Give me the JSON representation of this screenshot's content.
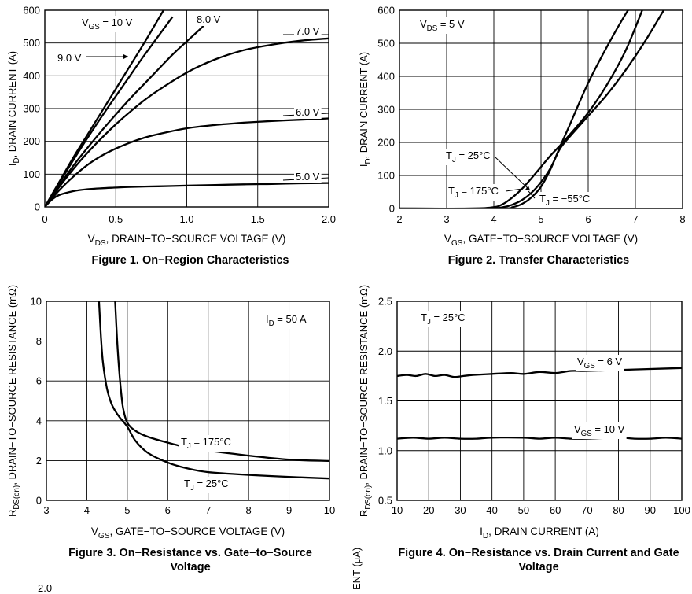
{
  "chart_data": [
    {
      "type": "line",
      "title": "Figure 1. On−Region Characteristics",
      "xlabel": "V",
      "xlabel_sub": "DS",
      "xlabel_rest": ", DRAIN−TO−SOURCE VOLTAGE (V)",
      "ylabel": "I",
      "ylabel_sub": "D",
      "ylabel_rest": ", DRAIN CURRENT (A)",
      "xlim": [
        0,
        2.0
      ],
      "ylim": [
        0,
        600
      ],
      "xticks": [
        0,
        0.5,
        1.0,
        1.5,
        2.0
      ],
      "xtick_labels": [
        "0",
        "0.5",
        "1.0",
        "1.5",
        "2.0"
      ],
      "yticks": [
        0,
        100,
        200,
        300,
        400,
        500,
        600
      ],
      "ytick_labels": [
        "0",
        "100",
        "200",
        "300",
        "400",
        "500",
        "600"
      ],
      "grid": true,
      "series": [
        {
          "name": "10 V",
          "x": [
            0,
            0.1,
            0.2,
            0.3,
            0.4,
            0.5,
            0.6,
            0.7,
            0.85
          ],
          "y": [
            0,
            75,
            150,
            220,
            290,
            360,
            430,
            500,
            610
          ]
        },
        {
          "name": "9.0 V",
          "x": [
            0,
            0.1,
            0.2,
            0.3,
            0.4,
            0.5,
            0.6,
            0.7,
            0.9
          ],
          "y": [
            0,
            72,
            142,
            210,
            275,
            338,
            400,
            462,
            580
          ]
        },
        {
          "name": "8.0 V",
          "x": [
            0,
            0.1,
            0.2,
            0.3,
            0.4,
            0.5,
            0.6,
            0.7,
            0.8,
            0.9,
            1.0,
            1.1,
            1.2
          ],
          "y": [
            0,
            64,
            125,
            180,
            232,
            282,
            330,
            375,
            420,
            465,
            505,
            545,
            590
          ]
        },
        {
          "name": "7.0 V",
          "x": [
            0,
            0.1,
            0.2,
            0.3,
            0.4,
            0.5,
            0.6,
            0.7,
            0.8,
            1.0,
            1.2,
            1.4,
            1.6,
            1.8,
            2.0
          ],
          "y": [
            0,
            60,
            115,
            165,
            210,
            252,
            290,
            325,
            356,
            410,
            450,
            478,
            495,
            507,
            514
          ]
        },
        {
          "name": "6.0 V",
          "x": [
            0,
            0.1,
            0.2,
            0.3,
            0.4,
            0.5,
            0.6,
            0.7,
            0.8,
            1.0,
            1.2,
            1.4,
            1.6,
            1.8,
            2.0
          ],
          "y": [
            0,
            50,
            92,
            128,
            156,
            178,
            196,
            211,
            222,
            240,
            250,
            257,
            262,
            266,
            270
          ]
        },
        {
          "name": "5.0 V",
          "x": [
            0,
            0.05,
            0.1,
            0.2,
            0.3,
            0.4,
            0.5,
            0.6,
            0.8,
            1.0,
            1.2,
            1.4,
            1.6,
            1.8,
            2.0
          ],
          "y": [
            0,
            22,
            36,
            48,
            54,
            57,
            59,
            61,
            63,
            65,
            67,
            69,
            70,
            72,
            73
          ]
        }
      ],
      "annotations": [
        {
          "text": "V",
          "sub": "GS",
          "rest": " = 10 V"
        },
        {
          "text": "9.0 V"
        },
        {
          "text": "8.0 V"
        },
        {
          "text": "7.0 V"
        },
        {
          "text": "6.0 V"
        },
        {
          "text": "5.0 V"
        }
      ]
    },
    {
      "type": "line",
      "title": "Figure 2. Transfer Characteristics",
      "xlabel": "V",
      "xlabel_sub": "GS",
      "xlabel_rest": ", GATE−TO−SOURCE VOLTAGE (V)",
      "ylabel": "I",
      "ylabel_sub": "D",
      "ylabel_rest": ", DRAIN CURRENT (A)",
      "xlim": [
        2,
        8
      ],
      "ylim": [
        0,
        600
      ],
      "xticks": [
        2,
        3,
        4,
        5,
        6,
        7,
        8
      ],
      "xtick_labels": [
        "2",
        "3",
        "4",
        "5",
        "6",
        "7",
        "8"
      ],
      "yticks": [
        0,
        100,
        200,
        300,
        400,
        500,
        600
      ],
      "ytick_labels": [
        "0",
        "100",
        "200",
        "300",
        "400",
        "500",
        "600"
      ],
      "grid": true,
      "series": [
        {
          "name": "T_J = 25°C",
          "x": [
            2,
            3.5,
            4.0,
            4.2,
            4.4,
            4.6,
            4.8,
            5.0,
            5.2,
            5.4,
            5.6,
            6.0,
            6.4,
            6.8,
            7.2
          ],
          "y": [
            0,
            0,
            4,
            14,
            34,
            60,
            92,
            126,
            160,
            190,
            222,
            290,
            375,
            480,
            620
          ]
        },
        {
          "name": "T_J = 175°C",
          "x": [
            2,
            3.8,
            4.2,
            4.4,
            4.6,
            4.8,
            5.0,
            5.2,
            5.4,
            5.6,
            6.0,
            6.4,
            6.8,
            7.2,
            7.6
          ],
          "y": [
            0,
            0,
            4,
            12,
            26,
            48,
            80,
            122,
            180,
            216,
            280,
            345,
            420,
            505,
            600
          ]
        },
        {
          "name": "T_J = −55°C",
          "x": [
            2,
            4.1,
            4.4,
            4.6,
            4.8,
            5.0,
            5.2,
            5.4,
            5.6,
            6.0,
            6.4,
            6.8,
            7.0
          ],
          "y": [
            0,
            0,
            4,
            14,
            34,
            66,
            118,
            186,
            250,
            380,
            490,
            590,
            630
          ]
        }
      ],
      "annotations": [
        {
          "text": "V",
          "sub": "DS",
          "rest": " = 5 V"
        },
        {
          "text": "T",
          "sub": "J",
          "rest": " = 25°C"
        },
        {
          "text": "T",
          "sub": "J",
          "rest": " = 175°C"
        },
        {
          "text": "T",
          "sub": "J",
          "rest": " = −55°C"
        }
      ]
    },
    {
      "type": "line",
      "title": "Figure 3. On−Resistance vs. Gate−to−Source Voltage",
      "xlabel": "V",
      "xlabel_sub": "GS",
      "xlabel_rest": ", GATE−TO−SOURCE VOLTAGE (V)",
      "ylabel": "R",
      "ylabel_sub": "DS(on)",
      "ylabel_rest": ", DRAIN−TO−SOURCE RESISTANCE (mΩ)",
      "xlim": [
        3,
        10
      ],
      "ylim": [
        0,
        10
      ],
      "xticks": [
        3,
        4,
        5,
        6,
        7,
        8,
        9,
        10
      ],
      "xtick_labels": [
        "3",
        "4",
        "5",
        "6",
        "7",
        "8",
        "9",
        "10"
      ],
      "yticks": [
        0,
        2,
        4,
        6,
        8,
        10
      ],
      "ytick_labels": [
        "0",
        "2",
        "4",
        "6",
        "8",
        "10"
      ],
      "grid": true,
      "series": [
        {
          "name": "T_J = 175°C",
          "x": [
            4.7,
            4.75,
            4.8,
            4.85,
            4.9,
            5.0,
            5.2,
            5.5,
            6.0,
            6.5,
            7.0,
            8.0,
            9.0,
            10.0
          ],
          "y": [
            10.0,
            8.0,
            6.5,
            5.4,
            4.6,
            3.9,
            3.5,
            3.2,
            2.9,
            2.65,
            2.5,
            2.25,
            2.05,
            1.98
          ]
        },
        {
          "name": "T_J = 25°C",
          "x": [
            4.3,
            4.35,
            4.4,
            4.5,
            4.6,
            4.7,
            4.8,
            5.0,
            5.2,
            5.5,
            6.0,
            6.5,
            7.0,
            8.0,
            9.0,
            10.0
          ],
          "y": [
            10.0,
            8.2,
            6.9,
            5.6,
            4.9,
            4.5,
            4.2,
            3.7,
            3.0,
            2.4,
            1.9,
            1.6,
            1.42,
            1.28,
            1.18,
            1.1
          ]
        }
      ],
      "annotations": [
        {
          "text": "I",
          "sub": "D",
          "rest": " = 50 A"
        },
        {
          "text": "T",
          "sub": "J",
          "rest": " = 175°C"
        },
        {
          "text": "T",
          "sub": "J",
          "rest": " = 25°C"
        }
      ]
    },
    {
      "type": "line",
      "title": "Figure 4. On−Resistance vs. Drain Current and Gate Voltage",
      "xlabel": "I",
      "xlabel_sub": "D",
      "xlabel_rest": ", DRAIN CURRENT (A)",
      "ylabel": "R",
      "ylabel_sub": "DS(on)",
      "ylabel_rest": ", DRAIN−TO−SOURCE RESISTANCE (mΩ)",
      "xlim": [
        10,
        100
      ],
      "ylim": [
        0.5,
        2.5
      ],
      "xticks": [
        10,
        20,
        30,
        40,
        50,
        60,
        70,
        80,
        90,
        100
      ],
      "xtick_labels": [
        "10",
        "20",
        "30",
        "40",
        "50",
        "60",
        "70",
        "80",
        "90",
        "100"
      ],
      "yticks": [
        0.5,
        1.0,
        1.5,
        2.0,
        2.5
      ],
      "ytick_labels": [
        "0.5",
        "1.0",
        "1.5",
        "2.0",
        "2.5"
      ],
      "grid": true,
      "series": [
        {
          "name": "V_GS = 6 V",
          "x": [
            10,
            13,
            16,
            19,
            22,
            25,
            28,
            31,
            34,
            40,
            46,
            50,
            55,
            60,
            65,
            70,
            80,
            90,
            100
          ],
          "y": [
            1.75,
            1.76,
            1.75,
            1.77,
            1.75,
            1.76,
            1.74,
            1.75,
            1.76,
            1.77,
            1.78,
            1.77,
            1.79,
            1.78,
            1.8,
            1.8,
            1.81,
            1.82,
            1.83
          ]
        },
        {
          "name": "V_GS = 10 V",
          "x": [
            10,
            15,
            20,
            25,
            30,
            35,
            40,
            50,
            55,
            60,
            65,
            70,
            80,
            85,
            90,
            95,
            100
          ],
          "y": [
            1.12,
            1.13,
            1.12,
            1.13,
            1.12,
            1.12,
            1.13,
            1.13,
            1.12,
            1.13,
            1.12,
            1.12,
            1.13,
            1.12,
            1.12,
            1.13,
            1.12
          ]
        }
      ],
      "annotations": [
        {
          "text": "T",
          "sub": "J",
          "rest": " = 25°C"
        },
        {
          "text": "V",
          "sub": "GS",
          "rest": " = 6 V"
        },
        {
          "text": "V",
          "sub": "GS",
          "rest": " = 10 V"
        }
      ]
    }
  ],
  "bottom_fragments": {
    "left_value": "2.0",
    "right_ylabel_fragment": "ENT (μA)"
  }
}
